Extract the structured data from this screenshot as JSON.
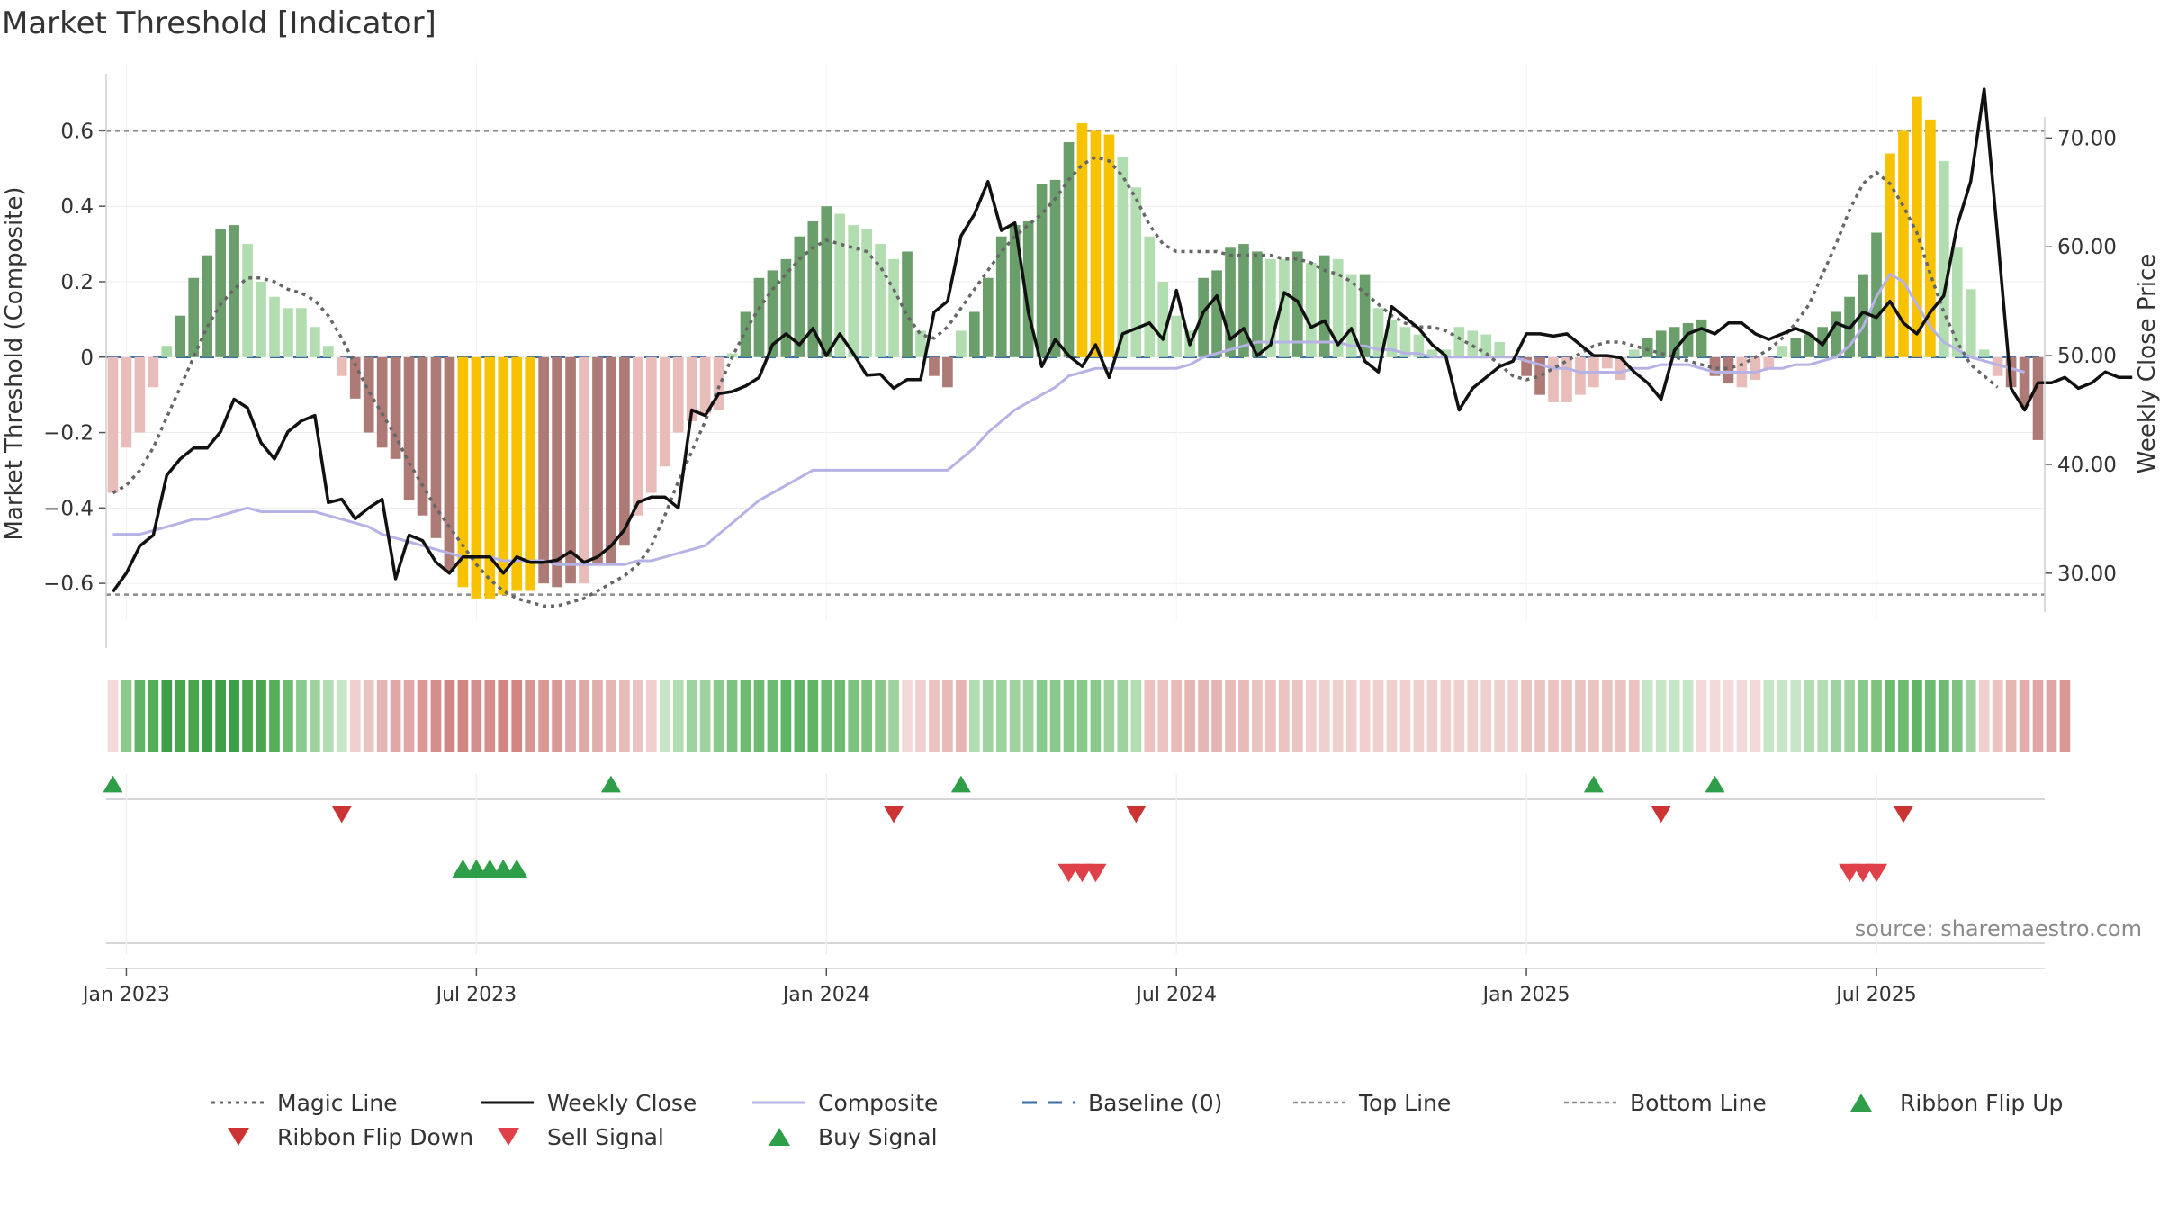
{
  "chart_data": {
    "type": "bar",
    "title": "Market Threshold [Indicator]",
    "ylabel": "Market Threshold (Composite)",
    "y2label": "Weekly Close Price",
    "ylim": [
      -0.7,
      0.78
    ],
    "y2lim": [
      25.6,
      76.9
    ],
    "yticks": [
      {
        "v": 0.6,
        "t": "0.6"
      },
      {
        "v": 0.4,
        "t": "0.4"
      },
      {
        "v": 0.2,
        "t": "0.2"
      },
      {
        "v": 0,
        "t": "0"
      },
      {
        "v": -0.2,
        "t": "−0.2"
      },
      {
        "v": -0.4,
        "t": "−0.4"
      },
      {
        "v": -0.6,
        "t": "−0.6"
      }
    ],
    "y2ticks": [
      {
        "v": 70,
        "t": "70.00"
      },
      {
        "v": 60,
        "t": "60.00"
      },
      {
        "v": 50,
        "t": "50.00"
      },
      {
        "v": 40,
        "t": "40.00"
      },
      {
        "v": 30,
        "t": "30.00"
      }
    ],
    "xticks": [
      {
        "i": 1,
        "t": "Jan 2023"
      },
      {
        "i": 27,
        "t": "Jul 2023"
      },
      {
        "i": 53,
        "t": "Jan 2024"
      },
      {
        "i": 79,
        "t": "Jul 2024"
      },
      {
        "i": 105,
        "t": "Jan 2025"
      },
      {
        "i": 131,
        "t": "Jul 2025"
      }
    ],
    "top_line": 0.6,
    "bottom_line": -0.63,
    "composite_bars": [
      -0.36,
      -0.24,
      -0.2,
      -0.08,
      0.03,
      0.11,
      0.21,
      0.27,
      0.34,
      0.35,
      0.3,
      0.2,
      0.16,
      0.13,
      0.13,
      0.08,
      0.03,
      -0.05,
      -0.11,
      -0.2,
      -0.24,
      -0.27,
      -0.38,
      -0.42,
      -0.48,
      -0.57,
      -0.61,
      -0.64,
      -0.64,
      -0.63,
      -0.62,
      -0.62,
      -0.6,
      -0.61,
      -0.6,
      -0.6,
      -0.55,
      -0.55,
      -0.5,
      -0.42,
      -0.36,
      -0.29,
      -0.2,
      -0.17,
      -0.15,
      -0.14,
      0.01,
      0.12,
      0.21,
      0.23,
      0.26,
      0.32,
      0.36,
      0.4,
      0.38,
      0.35,
      0.34,
      0.3,
      0.26,
      0.28,
      0.07,
      -0.05,
      -0.08,
      0.07,
      0.12,
      0.21,
      0.32,
      0.35,
      0.36,
      0.46,
      0.47,
      0.57,
      0.62,
      0.6,
      0.59,
      0.53,
      0.45,
      0.32,
      0.2,
      0.11,
      0.07,
      0.21,
      0.23,
      0.29,
      0.3,
      0.28,
      0.26,
      0.26,
      0.28,
      0.25,
      0.27,
      0.26,
      0.22,
      0.22,
      0.13,
      0.1,
      0.08,
      0.06,
      0.02,
      0.02,
      0.08,
      0.07,
      0.06,
      0.04,
      0.0,
      -0.05,
      -0.1,
      -0.12,
      -0.12,
      -0.1,
      -0.08,
      -0.03,
      -0.06,
      0.02,
      0.05,
      0.07,
      0.08,
      0.09,
      0.1,
      -0.05,
      -0.07,
      -0.08,
      -0.06,
      -0.03,
      0.03,
      0.05,
      0.06,
      0.08,
      0.12,
      0.16,
      0.22,
      0.33,
      0.54,
      0.6,
      0.69,
      0.63,
      0.52,
      0.29,
      0.18,
      0.02,
      -0.05,
      -0.08,
      -0.13,
      -0.22
    ],
    "bar_colors": [
      "#e8bcb8",
      "#e8bcb8",
      "#e8bcb8",
      "#e8bcb8",
      "#a8d8a6",
      "#6a9e6a",
      "#6a9e6a",
      "#6a9e6a",
      "#6a9e6a",
      "#6a9e6a",
      "#b2ddb0",
      "#b2ddb0",
      "#b2ddb0",
      "#b2ddb0",
      "#b2ddb0",
      "#b2ddb0",
      "#b2ddb0",
      "#e8bcb8",
      "#ad7a76",
      "#ad7a76",
      "#ad7a76",
      "#ad7a76",
      "#ad7a76",
      "#ad7a76",
      "#ad7a76",
      "#ad7a76",
      "#f7c200",
      "#f7c200",
      "#f7c200",
      "#f7c200",
      "#f7c200",
      "#f7c200",
      "#ad7a76",
      "#ad7a76",
      "#ad7a76",
      "#e8bcb8",
      "#ad7a76",
      "#ad7a76",
      "#ad7a76",
      "#e8bcb8",
      "#e8bcb8",
      "#e8bcb8",
      "#e8bcb8",
      "#e8bcb8",
      "#e8bcb8",
      "#e8bcb8",
      "#b2ddb0",
      "#6a9e6a",
      "#6a9e6a",
      "#6a9e6a",
      "#6a9e6a",
      "#6a9e6a",
      "#6a9e6a",
      "#6a9e6a",
      "#b2ddb0",
      "#b2ddb0",
      "#b2ddb0",
      "#b2ddb0",
      "#b2ddb0",
      "#6a9e6a",
      "#b2ddb0",
      "#ad7a76",
      "#ad7a76",
      "#b2ddb0",
      "#6a9e6a",
      "#6a9e6a",
      "#6a9e6a",
      "#6a9e6a",
      "#6a9e6a",
      "#6a9e6a",
      "#6a9e6a",
      "#6a9e6a",
      "#f7c200",
      "#f7c200",
      "#f7c200",
      "#b2ddb0",
      "#b2ddb0",
      "#b2ddb0",
      "#b2ddb0",
      "#b2ddb0",
      "#b2ddb0",
      "#6a9e6a",
      "#6a9e6a",
      "#6a9e6a",
      "#6a9e6a",
      "#6a9e6a",
      "#b2ddb0",
      "#b2ddb0",
      "#6a9e6a",
      "#b2ddb0",
      "#6a9e6a",
      "#b2ddb0",
      "#b2ddb0",
      "#6a9e6a",
      "#b2ddb0",
      "#b2ddb0",
      "#b2ddb0",
      "#b2ddb0",
      "#b2ddb0",
      "#b2ddb0",
      "#b2ddb0",
      "#b2ddb0",
      "#b2ddb0",
      "#b2ddb0",
      "#b2ddb0",
      "#ad7a76",
      "#ad7a76",
      "#e8bcb8",
      "#e8bcb8",
      "#e8bcb8",
      "#e8bcb8",
      "#e8bcb8",
      "#e8bcb8",
      "#b2ddb0",
      "#6a9e6a",
      "#6a9e6a",
      "#6a9e6a",
      "#6a9e6a",
      "#6a9e6a",
      "#ad7a76",
      "#ad7a76",
      "#e8bcb8",
      "#e8bcb8",
      "#e8bcb8",
      "#b2ddb0",
      "#6a9e6a",
      "#6a9e6a",
      "#6a9e6a",
      "#6a9e6a",
      "#6a9e6a",
      "#6a9e6a",
      "#6a9e6a",
      "#f7c200",
      "#f7c200",
      "#f7c200",
      "#f7c200",
      "#b2ddb0",
      "#b2ddb0",
      "#b2ddb0",
      "#b2ddb0",
      "#e8bcb8",
      "#ad7a76",
      "#ad7a76",
      "#ad7a76"
    ],
    "magic_line": [
      -0.36,
      -0.34,
      -0.3,
      -0.24,
      -0.16,
      -0.08,
      0.0,
      0.08,
      0.14,
      0.18,
      0.21,
      0.21,
      0.2,
      0.18,
      0.17,
      0.15,
      0.11,
      0.05,
      -0.02,
      -0.09,
      -0.15,
      -0.21,
      -0.28,
      -0.34,
      -0.4,
      -0.45,
      -0.5,
      -0.55,
      -0.59,
      -0.62,
      -0.64,
      -0.65,
      -0.66,
      -0.66,
      -0.65,
      -0.64,
      -0.62,
      -0.6,
      -0.58,
      -0.55,
      -0.5,
      -0.42,
      -0.33,
      -0.25,
      -0.17,
      -0.08,
      0.0,
      0.07,
      0.13,
      0.18,
      0.22,
      0.26,
      0.29,
      0.31,
      0.3,
      0.29,
      0.28,
      0.24,
      0.18,
      0.11,
      0.06,
      0.05,
      0.08,
      0.13,
      0.18,
      0.23,
      0.28,
      0.32,
      0.35,
      0.38,
      0.42,
      0.47,
      0.51,
      0.53,
      0.52,
      0.48,
      0.42,
      0.35,
      0.3,
      0.28,
      0.28,
      0.28,
      0.28,
      0.27,
      0.27,
      0.27,
      0.27,
      0.26,
      0.26,
      0.25,
      0.23,
      0.22,
      0.2,
      0.17,
      0.14,
      0.11,
      0.09,
      0.08,
      0.08,
      0.07,
      0.05,
      0.03,
      0.01,
      -0.02,
      -0.05,
      -0.06,
      -0.05,
      -0.03,
      -0.01,
      0.01,
      0.03,
      0.04,
      0.04,
      0.03,
      0.02,
      0.01,
      0.0,
      -0.01,
      -0.02,
      -0.03,
      -0.03,
      -0.02,
      0.0,
      0.02,
      0.05,
      0.09,
      0.14,
      0.22,
      0.3,
      0.39,
      0.46,
      0.49,
      0.46,
      0.4,
      0.33,
      0.22,
      0.12,
      0.04,
      -0.02,
      -0.05,
      -0.08
    ],
    "composite_line": [
      -0.47,
      -0.47,
      -0.47,
      -0.46,
      -0.45,
      -0.44,
      -0.43,
      -0.43,
      -0.42,
      -0.41,
      -0.4,
      -0.41,
      -0.41,
      -0.41,
      -0.41,
      -0.41,
      -0.42,
      -0.43,
      -0.44,
      -0.45,
      -0.47,
      -0.48,
      -0.49,
      -0.5,
      -0.51,
      -0.52,
      -0.53,
      -0.53,
      -0.53,
      -0.54,
      -0.54,
      -0.54,
      -0.54,
      -0.55,
      -0.55,
      -0.55,
      -0.55,
      -0.55,
      -0.55,
      -0.54,
      -0.54,
      -0.53,
      -0.52,
      -0.51,
      -0.5,
      -0.47,
      -0.44,
      -0.41,
      -0.38,
      -0.36,
      -0.34,
      -0.32,
      -0.3,
      -0.3,
      -0.3,
      -0.3,
      -0.3,
      -0.3,
      -0.3,
      -0.3,
      -0.3,
      -0.3,
      -0.3,
      -0.27,
      -0.24,
      -0.2,
      -0.17,
      -0.14,
      -0.12,
      -0.1,
      -0.08,
      -0.05,
      -0.04,
      -0.03,
      -0.03,
      -0.03,
      -0.03,
      -0.03,
      -0.03,
      -0.03,
      -0.02,
      0.0,
      0.01,
      0.02,
      0.03,
      0.04,
      0.04,
      0.04,
      0.04,
      0.04,
      0.04,
      0.04,
      0.03,
      0.03,
      0.02,
      0.02,
      0.01,
      0.01,
      0.0,
      0.0,
      0.0,
      0.0,
      0.0,
      0.0,
      0.0,
      -0.01,
      -0.02,
      -0.03,
      -0.03,
      -0.04,
      -0.04,
      -0.04,
      -0.04,
      -0.03,
      -0.03,
      -0.02,
      -0.02,
      -0.02,
      -0.03,
      -0.04,
      -0.04,
      -0.04,
      -0.04,
      -0.03,
      -0.03,
      -0.02,
      -0.02,
      -0.01,
      0.0,
      0.03,
      0.08,
      0.16,
      0.22,
      0.2,
      0.14,
      0.08,
      0.04,
      0.02,
      0.0,
      -0.01,
      -0.02,
      -0.03,
      -0.04
    ],
    "weekly_close": [
      28.3,
      30.0,
      32.5,
      33.5,
      39.0,
      40.5,
      41.5,
      41.5,
      43.0,
      46.0,
      45.2,
      42.0,
      40.5,
      43.0,
      44.0,
      44.5,
      36.5,
      36.8,
      35.0,
      36.0,
      36.8,
      29.5,
      33.5,
      33.0,
      31.0,
      30.0,
      31.5,
      31.5,
      31.5,
      30.0,
      31.5,
      31.0,
      31.0,
      31.2,
      32.0,
      31.0,
      31.5,
      32.5,
      34.0,
      36.5,
      37.0,
      37.0,
      36.0,
      45.0,
      44.5,
      46.5,
      46.7,
      47.2,
      48.0,
      51.0,
      52.0,
      51.0,
      52.5,
      50.0,
      52.0,
      50.2,
      48.2,
      48.3,
      47.0,
      47.8,
      47.8,
      54.0,
      55.0,
      61.0,
      63.0,
      66.0,
      61.5,
      62.2,
      54.0,
      49.0,
      51.5,
      50.0,
      49.0,
      51.0,
      48.0,
      52.0,
      52.5,
      53.0,
      51.5,
      56.0,
      51.0,
      54.0,
      55.5,
      51.5,
      52.5,
      50.0,
      51.0,
      55.8,
      55.0,
      52.6,
      53.2,
      51.0,
      52.5,
      49.5,
      48.5,
      54.5,
      53.5,
      52.5,
      51.0,
      50.0,
      45.0,
      47.0,
      48.0,
      49.0,
      49.5,
      52.0,
      52.0,
      51.8,
      52.0,
      51.0,
      50.0,
      50.0,
      49.8,
      48.5,
      47.5,
      46.0,
      50.5,
      52.0,
      52.5,
      52.0,
      53.0,
      53.0,
      52.0,
      51.5,
      52.0,
      52.5,
      52.0,
      51.0,
      53.0,
      52.5,
      54.0,
      53.5,
      55.0,
      53.0,
      52.0,
      54.0,
      55.5,
      62.0,
      66.0,
      74.5,
      61.0,
      47.0,
      45.0,
      47.5,
      47.5,
      48.0,
      47.0,
      47.5,
      48.5,
      48.0,
      48.0
    ],
    "ribbon_colors": [
      "#f3dada",
      "#89c98a",
      "#5fb465",
      "#53ae5a",
      "#3e9f48",
      "#48a64f",
      "#48a64f",
      "#3e9f48",
      "#3e9f48",
      "#3e9f48",
      "#48a64f",
      "#48a64f",
      "#53ae5a",
      "#6cbb71",
      "#8ac98c",
      "#9ed3a0",
      "#b2ddb2",
      "#c6e6c7",
      "#f0d0cf",
      "#ebc3c1",
      "#e5b5b3",
      "#dfa8a6",
      "#dea6a4",
      "#d99896",
      "#d58e8b",
      "#d28683",
      "#d28683",
      "#d58e8b",
      "#d58e8b",
      "#d28683",
      "#d28683",
      "#d79593",
      "#d99896",
      "#d99896",
      "#dfa8a6",
      "#dfa8a6",
      "#e2aeac",
      "#e5b5b3",
      "#e8bab8",
      "#ebc3c1",
      "#f0d0cf",
      "#c6e6c7",
      "#b2ddb2",
      "#9ed3a0",
      "#9ed3a0",
      "#8ac98c",
      "#7dc37f",
      "#6cbb71",
      "#6cbb71",
      "#6cbb71",
      "#5fb465",
      "#5fb465",
      "#5fb465",
      "#6cbb71",
      "#6cbb71",
      "#7dc37f",
      "#7dc37f",
      "#8ac98c",
      "#9ed3a0",
      "#f3dada",
      "#f0d0cf",
      "#ebc3c1",
      "#e8bab8",
      "#e5b5b3",
      "#b2ddb2",
      "#9ed3a0",
      "#9ed3a0",
      "#9ed3a0",
      "#9ed3a0",
      "#8ac98c",
      "#8ac98c",
      "#8ac98c",
      "#8ac98c",
      "#8ac98c",
      "#9ed3a0",
      "#9ed3a0",
      "#b2ddb2",
      "#ebc3c1",
      "#ebc3c1",
      "#e8bab8",
      "#e5b5b3",
      "#e5b5b3",
      "#e5b5b3",
      "#e8bab8",
      "#e8bab8",
      "#ebc3c1",
      "#ebc3c1",
      "#ebc3c1",
      "#ebc3c1",
      "#f0d0cf",
      "#f0d0cf",
      "#f0d0cf",
      "#f0d0cf",
      "#f0d0cf",
      "#f0d0cf",
      "#f0d0cf",
      "#f0d0cf",
      "#f0d0cf",
      "#f0d0cf",
      "#f0d0cf",
      "#f0d0cf",
      "#f0d0cf",
      "#f0d0cf",
      "#f0d0cf",
      "#f0d0cf",
      "#ebc3c1",
      "#ebc3c1",
      "#ebc3c1",
      "#ebc3c1",
      "#ebc3c1",
      "#ebc3c1",
      "#ebc3c1",
      "#ebc3c1",
      "#ebc3c1",
      "#c6e6c7",
      "#c6e6c7",
      "#c6e6c7",
      "#c6e6c7",
      "#f3dada",
      "#f3dada",
      "#f3dada",
      "#f3dada",
      "#f3dada",
      "#c6e6c7",
      "#c6e6c7",
      "#c6e6c7",
      "#b2ddb2",
      "#b2ddb2",
      "#9ed3a0",
      "#9ed3a0",
      "#8ac98c",
      "#7dc37f",
      "#6cbb71",
      "#6cbb71",
      "#5fb465",
      "#6cbb71",
      "#6cbb71",
      "#7dc37f",
      "#9ed3a0",
      "#f0d0cf",
      "#ebc3c1",
      "#e5b5b3",
      "#e2aeac",
      "#dfa8a6",
      "#dea6a4",
      "#d99896"
    ],
    "ribbon_flip_up": [
      0,
      37,
      63,
      110,
      119
    ],
    "ribbon_flip_down": [
      17,
      58,
      76,
      115,
      133
    ],
    "buy_signals": [
      26,
      27,
      28,
      29,
      30
    ],
    "sell_signals": [
      71,
      72,
      73,
      129,
      130,
      131
    ],
    "source_text": "source: sharemaestro.com",
    "legend": [
      {
        "label": "Magic Line",
        "kind": "dotted",
        "color": "#666666"
      },
      {
        "label": "Weekly Close",
        "kind": "solid",
        "color": "#111111"
      },
      {
        "label": "Composite",
        "kind": "solid-light",
        "color": "#b7b2e6"
      },
      {
        "label": "Baseline (0)",
        "kind": "dashed",
        "color": "#3a6ea5"
      },
      {
        "label": "Top Line",
        "kind": "dashed-thin",
        "color": "#8c8c8c"
      },
      {
        "label": "Bottom Line",
        "kind": "dashed-thin",
        "color": "#8c8c8c"
      },
      {
        "label": "Ribbon Flip Up",
        "kind": "tri-up",
        "color": "#2e9e48"
      },
      {
        "label": "Ribbon Flip Down",
        "kind": "tri-down",
        "color": "#cc3333"
      },
      {
        "label": "Sell Signal",
        "kind": "tri-down",
        "color": "#e0404a"
      },
      {
        "label": "Buy Signal",
        "kind": "tri-up",
        "color": "#2e9e48"
      }
    ]
  }
}
